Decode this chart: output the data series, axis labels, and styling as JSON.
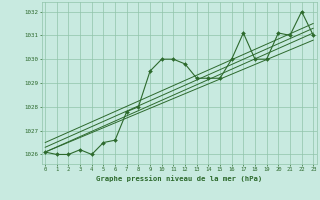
{
  "hours": [
    0,
    1,
    2,
    3,
    4,
    5,
    6,
    7,
    8,
    9,
    10,
    11,
    12,
    13,
    14,
    15,
    16,
    17,
    18,
    19,
    20,
    21,
    22,
    23
  ],
  "pressure": [
    1026.1,
    1026.0,
    1026.0,
    1026.2,
    1026.0,
    1026.5,
    1026.6,
    1027.8,
    1028.0,
    1029.5,
    1030.0,
    1030.0,
    1029.8,
    1029.2,
    1029.2,
    1029.2,
    1030.0,
    1031.1,
    1030.0,
    1030.0,
    1031.1,
    1031.0,
    1032.0,
    1031.0
  ],
  "trend_lines": [
    {
      "x": [
        0,
        23
      ],
      "y": [
        1026.1,
        1031.1
      ]
    },
    {
      "x": [
        0,
        23
      ],
      "y": [
        1026.1,
        1030.8
      ]
    },
    {
      "x": [
        0,
        23
      ],
      "y": [
        1026.3,
        1031.3
      ]
    },
    {
      "x": [
        0,
        23
      ],
      "y": [
        1026.5,
        1031.5
      ]
    }
  ],
  "line_color": "#2d6a2d",
  "bg_color": "#c8eae0",
  "grid_color": "#90c4aa",
  "text_color": "#2d6a2d",
  "ylabel_ticks": [
    1026,
    1027,
    1028,
    1029,
    1030,
    1031,
    1032
  ],
  "xlabel": "Graphe pression niveau de la mer (hPa)",
  "ylim": [
    1025.6,
    1032.4
  ],
  "xlim": [
    -0.3,
    23.3
  ]
}
